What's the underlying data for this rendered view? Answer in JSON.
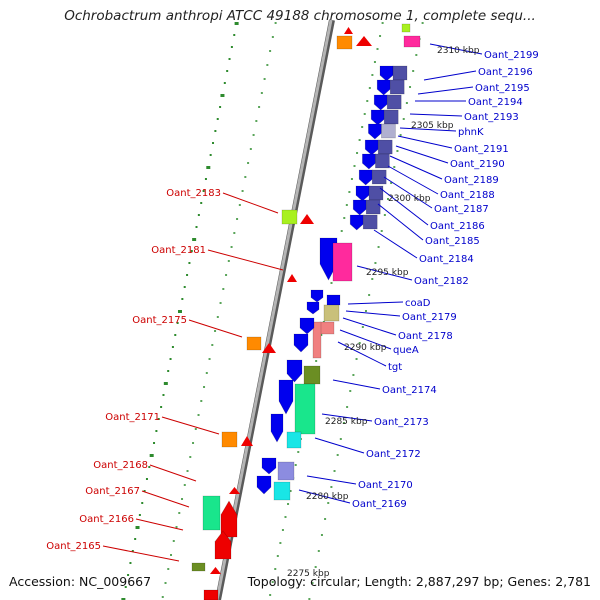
{
  "title": "Ochrobactrum anthropi ATCC 49188 chromosome 1, complete sequ...",
  "footer": {
    "accession": "Accession: NC_009667",
    "topology": "Topology: circular; Length: 2,887,297 bp; Genes: 2,781"
  },
  "scale_labels": [
    "2310 kbp",
    "2305 kbp",
    "2300 kbp",
    "2295 kbp",
    "2290 kbp",
    "2285 kbp",
    "2280 kbp",
    "2275 kbp"
  ],
  "colors": {
    "forward_label": "#0000cc",
    "reverse_label": "#cc0000",
    "backbone": "#8c8c8c",
    "tick_marks": "#2e8b2e",
    "cog_blue": "#0000ee",
    "cog_slate": "#4f4fa5",
    "cog_pink": "#ff2a9d",
    "cog_red": "#ee0000",
    "cog_orange": "#ff8a00",
    "cog_green": "#19e68c",
    "cog_cyan": "#19e6e6",
    "cog_olive": "#6b8e23",
    "cog_lime": "#a8f020",
    "cog_khaki": "#c9c07a",
    "cog_salmon": "#f08080",
    "cog_lavender": "#8c8ce0"
  },
  "forward_genes": [
    "Oant_2199",
    "Oant_2196",
    "Oant_2195",
    "Oant_2194",
    "Oant_2193",
    "phnK",
    "Oant_2191",
    "Oant_2190",
    "Oant_2189",
    "Oant_2188",
    "Oant_2187",
    "Oant_2186",
    "Oant_2185",
    "Oant_2184",
    "Oant_2182",
    "coaD",
    "Oant_2179",
    "Oant_2178",
    "queA",
    "tgt",
    "Oant_2174",
    "Oant_2173",
    "Oant_2172",
    "Oant_2170",
    "Oant_2169"
  ],
  "reverse_genes": [
    "Oant_2183",
    "Oant_2181",
    "Oant_2175",
    "Oant_2171",
    "Oant_2168",
    "Oant_2167",
    "Oant_2166",
    "Oant_2165"
  ]
}
